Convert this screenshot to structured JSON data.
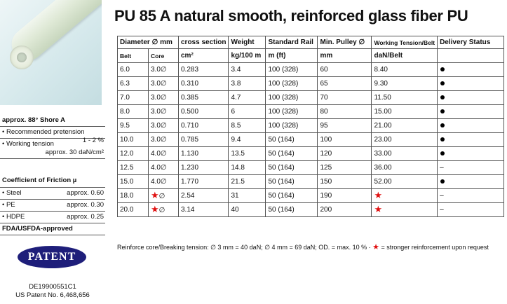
{
  "title": "PU 85 A natural smooth, reinforced glass fiber PU",
  "left": {
    "shore": "approx. 88° Shore A",
    "pretension": {
      "label": "• Recommended pretension",
      "value": "1 - 2 %"
    },
    "working_tension": {
      "label": "• Working tension",
      "value": "approx. 30 daN/cm²"
    },
    "friction_title": "Coefficient of Friction µ",
    "friction": [
      {
        "label": "• Steel",
        "value": "approx. 0.60"
      },
      {
        "label": "• PE",
        "value": "approx. 0.30"
      },
      {
        "label": "• HDPE",
        "value": "approx. 0.25"
      }
    ],
    "fda": "FDA/USFDA-approved",
    "patent_badge": "PATENT",
    "patent_numbers": [
      "DE19900551C1",
      "US Patent No. 6,468,656"
    ]
  },
  "table": {
    "head1": {
      "diameter": "Diameter ∅ mm",
      "cross": "cross section",
      "weight": "Weight",
      "rail": "Standard Rail",
      "pulley": "Min. Pulley ∅",
      "tension": "Working Tension/Belt",
      "delivery": "Delivery Status"
    },
    "head2": {
      "belt": "Belt",
      "core": "Core",
      "cross_unit": "cm²",
      "weight_unit": "kg/100 m",
      "rail_unit": "m (ft)",
      "pulley_unit": "mm",
      "tension_unit": "daN/Belt"
    },
    "rows": [
      {
        "belt": "6.0",
        "core": "3.0∅",
        "cross": "0.283",
        "weight": "3.4",
        "rail": "100 (328)",
        "pulley": "60",
        "tension": "8.40",
        "delivery": "dot"
      },
      {
        "belt": "6.3",
        "core": "3.0∅",
        "cross": "0.310",
        "weight": "3.8",
        "rail": "100 (328)",
        "pulley": "65",
        "tension": "9.30",
        "delivery": "dot"
      },
      {
        "belt": "7.0",
        "core": "3.0∅",
        "cross": "0.385",
        "weight": "4.7",
        "rail": "100 (328)",
        "pulley": "70",
        "tension": "11.50",
        "delivery": "dot"
      },
      {
        "belt": "8.0",
        "core": "3.0∅",
        "cross": "0.500",
        "weight": "6",
        "rail": "100 (328)",
        "pulley": "80",
        "tension": "15.00",
        "delivery": "dot"
      },
      {
        "belt": "9.5",
        "core": "3.0∅",
        "cross": "0.710",
        "weight": "8.5",
        "rail": "100 (328)",
        "pulley": "95",
        "tension": "21.00",
        "delivery": "dot"
      },
      {
        "belt": "10.0",
        "core": "3.0∅",
        "cross": "0.785",
        "weight": "9.4",
        "rail": "50 (164)",
        "pulley": "100",
        "tension": "23.00",
        "delivery": "dot"
      },
      {
        "belt": "12.0",
        "core": "4.0∅",
        "cross": "1.130",
        "weight": "13.5",
        "rail": "50 (164)",
        "pulley": "120",
        "tension": "33.00",
        "delivery": "dot"
      },
      {
        "belt": "12.5",
        "core": "4.0∅",
        "cross": "1.230",
        "weight": "14.8",
        "rail": "50 (164)",
        "pulley": "125",
        "tension": "36.00",
        "delivery": "–"
      },
      {
        "belt": "15.0",
        "core": "4.0∅",
        "cross": "1.770",
        "weight": "21.5",
        "rail": "50 (164)",
        "pulley": "150",
        "tension": "52.00",
        "delivery": "dot"
      },
      {
        "belt": "18.0",
        "core": "★∅",
        "cross": "2.54",
        "weight": "31",
        "rail": "50 (164)",
        "pulley": "190",
        "tension": "★",
        "delivery": "–"
      },
      {
        "belt": "20.0",
        "core": "★∅",
        "cross": "3.14",
        "weight": "40",
        "rail": "50 (164)",
        "pulley": "200",
        "tension": "★",
        "delivery": "–"
      }
    ]
  },
  "footnote": {
    "text": "Reinforce core/Breaking tension: ∅ 3 mm = 40 daN; ∅ 4 mm = 69 daN; OD. = max. 10 % ·",
    "star": "★",
    "tail": "= stronger reinforcement upon request"
  },
  "colors": {
    "star": "#e01010",
    "patent_bg": "#1e1e7a"
  }
}
